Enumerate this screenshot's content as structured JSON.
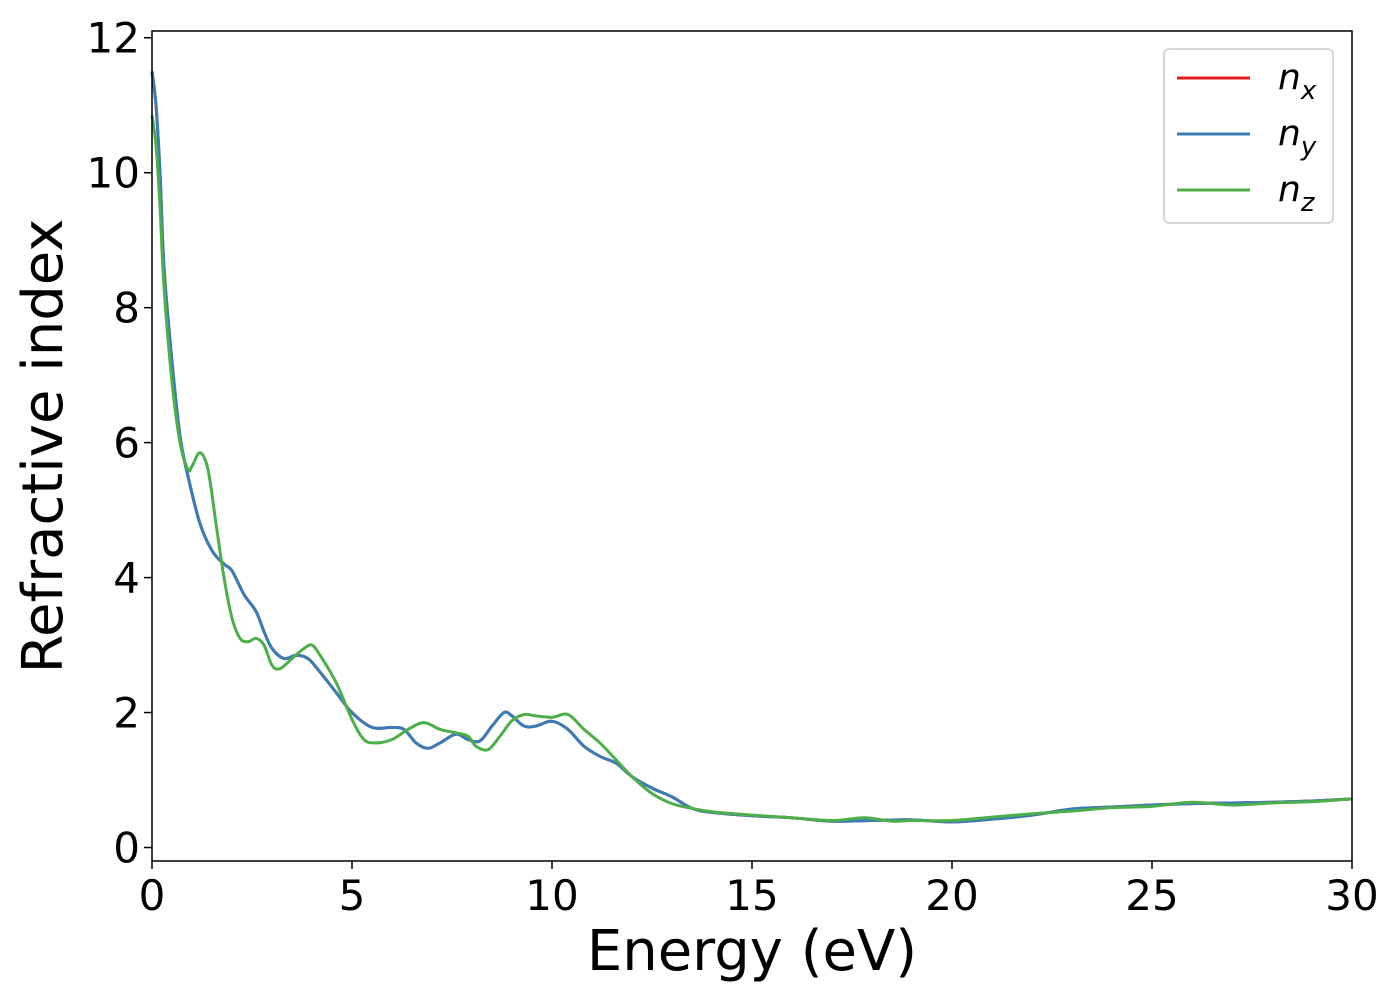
{
  "chart_data": {
    "type": "line",
    "xlabel": "Energy (eV)",
    "ylabel": "Refractive index",
    "xlim": [
      0,
      30
    ],
    "ylim": [
      -0.2,
      12.1
    ],
    "xticks": [
      0,
      5,
      10,
      15,
      20,
      25,
      30
    ],
    "yticks": [
      0,
      2,
      4,
      6,
      8,
      10,
      12
    ],
    "grid": false,
    "legend_position": "top-right",
    "series": [
      {
        "name": "n",
        "subscript": "x",
        "color": "#e41a1c",
        "x": [
          0,
          0.1,
          0.2,
          0.3,
          0.5,
          0.7,
          0.9,
          1.2,
          1.5,
          1.8,
          2.0,
          2.3,
          2.6,
          2.8,
          3.0,
          3.3,
          3.6,
          3.9,
          4.2,
          4.6,
          5.0,
          5.5,
          6.0,
          6.3,
          6.6,
          6.9,
          7.2,
          7.6,
          7.9,
          8.2,
          8.5,
          8.8,
          9.0,
          9.3,
          9.6,
          10.0,
          10.4,
          10.8,
          11.2,
          11.6,
          12.0,
          12.5,
          13.0,
          13.5,
          14.0,
          15.0,
          16.0,
          17.0,
          18.0,
          19.0,
          20.0,
          21.0,
          22.0,
          23.0,
          24.0,
          25.0,
          26.0,
          27.0,
          28.0,
          29.0,
          30.0
        ],
        "y": [
          11.5,
          11.0,
          10.0,
          8.6,
          7.2,
          6.1,
          5.5,
          4.8,
          4.4,
          4.2,
          4.1,
          3.75,
          3.5,
          3.2,
          2.95,
          2.8,
          2.85,
          2.8,
          2.6,
          2.3,
          2.0,
          1.78,
          1.78,
          1.75,
          1.55,
          1.47,
          1.55,
          1.68,
          1.6,
          1.58,
          1.8,
          2.0,
          1.95,
          1.8,
          1.8,
          1.87,
          1.75,
          1.5,
          1.35,
          1.25,
          1.05,
          0.88,
          0.75,
          0.58,
          0.52,
          0.47,
          0.44,
          0.39,
          0.4,
          0.41,
          0.38,
          0.42,
          0.48,
          0.57,
          0.6,
          0.63,
          0.65,
          0.66,
          0.67,
          0.69,
          0.72
        ]
      },
      {
        "name": "n",
        "subscript": "y",
        "color": "#377eb8",
        "x": [
          0,
          0.1,
          0.2,
          0.3,
          0.5,
          0.7,
          0.9,
          1.2,
          1.5,
          1.8,
          2.0,
          2.3,
          2.6,
          2.8,
          3.0,
          3.3,
          3.6,
          3.9,
          4.2,
          4.6,
          5.0,
          5.5,
          6.0,
          6.3,
          6.6,
          6.9,
          7.2,
          7.6,
          7.9,
          8.2,
          8.5,
          8.8,
          9.0,
          9.3,
          9.6,
          10.0,
          10.4,
          10.8,
          11.2,
          11.6,
          12.0,
          12.5,
          13.0,
          13.5,
          14.0,
          15.0,
          16.0,
          17.0,
          18.0,
          19.0,
          20.0,
          21.0,
          22.0,
          23.0,
          24.0,
          25.0,
          26.0,
          27.0,
          28.0,
          29.0,
          30.0
        ],
        "y": [
          11.5,
          11.0,
          10.0,
          8.6,
          7.2,
          6.1,
          5.5,
          4.8,
          4.4,
          4.2,
          4.1,
          3.75,
          3.5,
          3.2,
          2.95,
          2.8,
          2.85,
          2.8,
          2.6,
          2.3,
          2.0,
          1.78,
          1.78,
          1.75,
          1.55,
          1.47,
          1.55,
          1.68,
          1.6,
          1.58,
          1.8,
          2.0,
          1.95,
          1.8,
          1.8,
          1.87,
          1.75,
          1.5,
          1.35,
          1.25,
          1.05,
          0.88,
          0.75,
          0.58,
          0.52,
          0.47,
          0.44,
          0.39,
          0.4,
          0.41,
          0.38,
          0.42,
          0.48,
          0.57,
          0.6,
          0.63,
          0.65,
          0.66,
          0.67,
          0.69,
          0.72
        ]
      },
      {
        "name": "n",
        "subscript": "z",
        "color": "#4daf4a",
        "x": [
          0,
          0.1,
          0.2,
          0.3,
          0.5,
          0.7,
          0.9,
          1.0,
          1.2,
          1.4,
          1.6,
          1.8,
          2.0,
          2.2,
          2.4,
          2.6,
          2.8,
          3.0,
          3.2,
          3.5,
          3.8,
          4.0,
          4.2,
          4.6,
          5.0,
          5.3,
          5.6,
          6.0,
          6.4,
          6.8,
          7.2,
          7.6,
          7.9,
          8.1,
          8.4,
          8.7,
          9.0,
          9.3,
          9.6,
          10.0,
          10.4,
          10.8,
          11.2,
          11.6,
          12.0,
          12.5,
          13.0,
          13.5,
          14.0,
          15.0,
          16.0,
          17.0,
          17.8,
          18.5,
          19.0,
          20.0,
          21.0,
          22.0,
          23.0,
          24.0,
          25.0,
          26.0,
          27.0,
          28.0,
          29.0,
          30.0
        ],
        "y": [
          10.85,
          10.4,
          9.5,
          8.3,
          6.9,
          6.0,
          5.6,
          5.65,
          5.85,
          5.6,
          4.8,
          4.0,
          3.4,
          3.1,
          3.05,
          3.1,
          3.0,
          2.7,
          2.65,
          2.8,
          2.95,
          3.0,
          2.85,
          2.45,
          1.9,
          1.6,
          1.55,
          1.6,
          1.75,
          1.85,
          1.75,
          1.7,
          1.65,
          1.5,
          1.45,
          1.65,
          1.88,
          1.97,
          1.95,
          1.93,
          1.97,
          1.75,
          1.55,
          1.3,
          1.05,
          0.8,
          0.65,
          0.58,
          0.53,
          0.48,
          0.44,
          0.4,
          0.44,
          0.39,
          0.4,
          0.4,
          0.45,
          0.5,
          0.54,
          0.59,
          0.61,
          0.67,
          0.63,
          0.66,
          0.68,
          0.72
        ]
      }
    ]
  }
}
